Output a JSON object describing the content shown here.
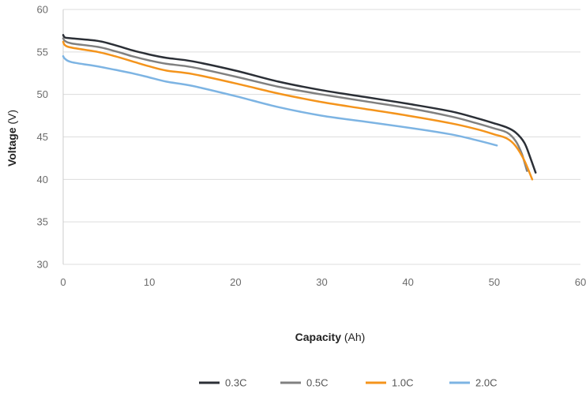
{
  "chart_data": {
    "type": "line",
    "title": "",
    "xlabel_bold": "Capacity",
    "xlabel_unit": "(Ah)",
    "ylabel_bold": "Voltage",
    "ylabel_unit": "(V)",
    "xlim": [
      0,
      60
    ],
    "ylim": [
      30,
      60
    ],
    "x_ticks": [
      0,
      10,
      20,
      30,
      40,
      50,
      60
    ],
    "y_ticks": [
      30,
      35,
      40,
      45,
      50,
      55,
      60
    ],
    "grid": "horizontal",
    "legend_position": "bottom",
    "series": [
      {
        "name": "0.3C",
        "color": "#2b2f36",
        "points": [
          [
            0,
            57.0
          ],
          [
            0.2,
            56.7
          ],
          [
            1,
            56.6
          ],
          [
            4,
            56.3
          ],
          [
            6,
            55.8
          ],
          [
            8,
            55.2
          ],
          [
            10,
            54.7
          ],
          [
            12,
            54.3
          ],
          [
            15,
            53.9
          ],
          [
            20,
            52.8
          ],
          [
            25,
            51.5
          ],
          [
            30,
            50.5
          ],
          [
            35,
            49.7
          ],
          [
            40,
            48.9
          ],
          [
            45,
            48.0
          ],
          [
            48,
            47.2
          ],
          [
            50,
            46.6
          ],
          [
            51.5,
            46.1
          ],
          [
            52.5,
            45.5
          ],
          [
            53.5,
            44.3
          ],
          [
            54.2,
            42.5
          ],
          [
            54.8,
            40.8
          ]
        ]
      },
      {
        "name": "0.5C",
        "color": "#808080",
        "points": [
          [
            0,
            56.6
          ],
          [
            0.2,
            56.3
          ],
          [
            1,
            56.0
          ],
          [
            4,
            55.6
          ],
          [
            6,
            55.1
          ],
          [
            8,
            54.5
          ],
          [
            10,
            54.0
          ],
          [
            12,
            53.6
          ],
          [
            15,
            53.2
          ],
          [
            20,
            52.1
          ],
          [
            25,
            50.9
          ],
          [
            30,
            50.0
          ],
          [
            35,
            49.2
          ],
          [
            40,
            48.4
          ],
          [
            45,
            47.4
          ],
          [
            48,
            46.6
          ],
          [
            50,
            46.0
          ],
          [
            51.5,
            45.5
          ],
          [
            52.5,
            44.5
          ],
          [
            53.2,
            43.0
          ],
          [
            53.8,
            41.0
          ]
        ]
      },
      {
        "name": "1.0C",
        "color": "#f4941c",
        "points": [
          [
            0,
            56.2
          ],
          [
            0.2,
            55.8
          ],
          [
            1,
            55.5
          ],
          [
            4,
            55.0
          ],
          [
            6,
            54.5
          ],
          [
            8,
            53.9
          ],
          [
            10,
            53.3
          ],
          [
            12,
            52.8
          ],
          [
            15,
            52.4
          ],
          [
            20,
            51.3
          ],
          [
            25,
            50.1
          ],
          [
            30,
            49.1
          ],
          [
            35,
            48.3
          ],
          [
            40,
            47.5
          ],
          [
            45,
            46.6
          ],
          [
            48,
            45.9
          ],
          [
            50,
            45.3
          ],
          [
            51.5,
            44.8
          ],
          [
            52.5,
            43.9
          ],
          [
            53.5,
            42.2
          ],
          [
            54.4,
            40.0
          ]
        ]
      },
      {
        "name": "2.0C",
        "color": "#7db4e3",
        "points": [
          [
            0,
            54.5
          ],
          [
            0.2,
            54.2
          ],
          [
            1,
            53.8
          ],
          [
            4,
            53.3
          ],
          [
            6,
            52.9
          ],
          [
            8,
            52.5
          ],
          [
            10,
            52.0
          ],
          [
            12,
            51.5
          ],
          [
            15,
            51.0
          ],
          [
            20,
            49.8
          ],
          [
            25,
            48.5
          ],
          [
            30,
            47.5
          ],
          [
            35,
            46.8
          ],
          [
            40,
            46.1
          ],
          [
            45,
            45.3
          ],
          [
            48,
            44.6
          ],
          [
            50.3,
            44.0
          ]
        ]
      }
    ]
  }
}
